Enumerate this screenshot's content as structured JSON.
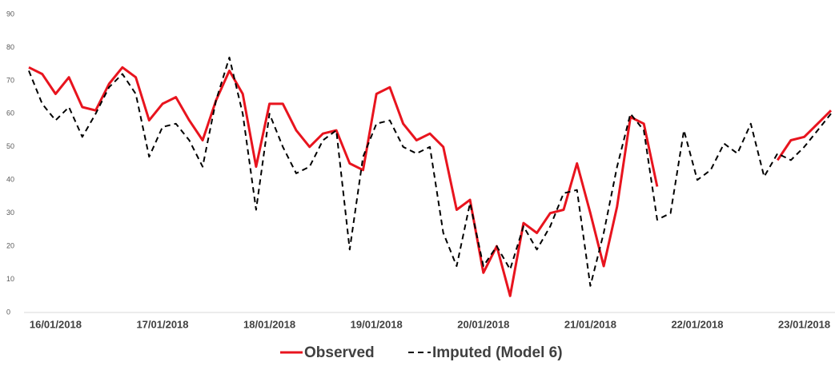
{
  "chart_data": {
    "type": "line",
    "categories": [
      null,
      null,
      "16/01/2018",
      null,
      null,
      null,
      null,
      null,
      null,
      null,
      "17/01/2018",
      null,
      null,
      null,
      null,
      null,
      null,
      null,
      "18/01/2018",
      null,
      null,
      null,
      null,
      null,
      null,
      null,
      "19/01/2018",
      null,
      null,
      null,
      null,
      null,
      null,
      null,
      "20/01/2018",
      null,
      null,
      null,
      null,
      null,
      null,
      null,
      "21/01/2018",
      null,
      null,
      null,
      null,
      null,
      null,
      null,
      "22/01/2018",
      null,
      null,
      null,
      null,
      null,
      null,
      null,
      "23/01/2018",
      null,
      null
    ],
    "series": [
      {
        "name": "Observed",
        "color": "#e8141e",
        "dash": false,
        "values": [
          74,
          72,
          66,
          71,
          62,
          61,
          69,
          74,
          71,
          58,
          63,
          65,
          58,
          52,
          64,
          73,
          66,
          44,
          63,
          63,
          55,
          50,
          54,
          55,
          45,
          43,
          66,
          68,
          57,
          52,
          54,
          50,
          31,
          34,
          12,
          20,
          5,
          27,
          24,
          30,
          31,
          45,
          30,
          14,
          32,
          59,
          57,
          38,
          null,
          null,
          null,
          null,
          null,
          null,
          null,
          null,
          46,
          52,
          53,
          57,
          61
        ]
      },
      {
        "name": "Imputed (Model 6)",
        "color": "#000000",
        "dash": true,
        "values": [
          73,
          63,
          58,
          62,
          53,
          60,
          68,
          72,
          66,
          47,
          56,
          57,
          52,
          44,
          64,
          77,
          60,
          31,
          60,
          50,
          42,
          44,
          52,
          55,
          19,
          47,
          57,
          58,
          50,
          48,
          50,
          24,
          14,
          33,
          14,
          20,
          13,
          26,
          19,
          26,
          36,
          37,
          8,
          24,
          44,
          60,
          55,
          28,
          30,
          55,
          40,
          43,
          51,
          48,
          57,
          41,
          48,
          46,
          50,
          55,
          60
        ]
      }
    ],
    "ylim": [
      0,
      90
    ],
    "yticks": [
      0,
      10,
      20,
      30,
      40,
      50,
      60,
      70,
      80,
      90
    ],
    "grid": false
  }
}
